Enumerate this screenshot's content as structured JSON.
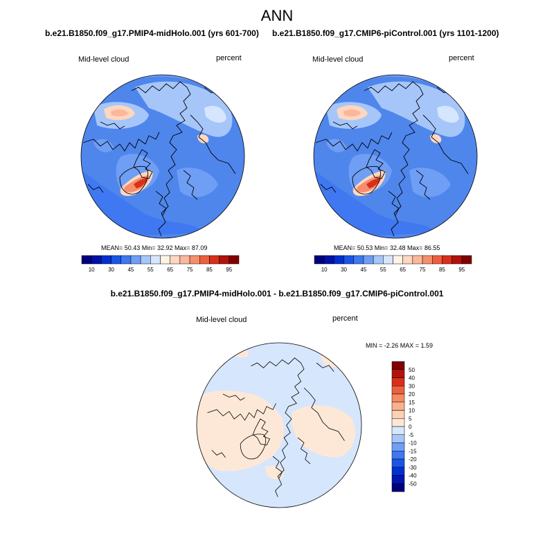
{
  "page_title": "ANN",
  "colors": {
    "abs_scale": [
      "#00007f",
      "#0010a8",
      "#0030d0",
      "#1a55e6",
      "#3f78f0",
      "#6f9ef5",
      "#a6c6fa",
      "#d6e6fd",
      "#fff3e6",
      "#fdd7bf",
      "#fbb79a",
      "#f68e6c",
      "#ee5f3e",
      "#d8301a",
      "#b3120a",
      "#800000"
    ],
    "diff_scale": [
      "#00007f",
      "#0016b0",
      "#0030d0",
      "#1a55e6",
      "#3f78f0",
      "#6f9ef5",
      "#a6c6fa",
      "#d6e6fd",
      "#fde8d7",
      "#fdd0b0",
      "#fbb090",
      "#f68a60",
      "#ee5f3e",
      "#d8301a",
      "#b3120a",
      "#800000"
    ],
    "map_base": "#4f86ec",
    "coast": "#000000"
  },
  "panels": {
    "left": {
      "case_title": "b.e21.B1850.f09_g17.PMIP4-midHolo.001 (yrs 601-700)",
      "variable": "Mid-level cloud",
      "units": "percent",
      "stats": "MEAN=  50.43  Min=  32.92  Max=  87.09"
    },
    "right": {
      "case_title": "b.e21.B1850.f09_g17.CMIP6-piControl.001 (yrs 1101-1200)",
      "variable": "Mid-level cloud",
      "units": "percent",
      "stats": "MEAN=  50.53  Min=  32.48  Max=  86.55"
    },
    "diff": {
      "case_title": "b.e21.B1850.f09_g17.PMIP4-midHolo.001 - b.e21.B1850.f09_g17.CMIP6-piControl.001",
      "variable": "Mid-level cloud",
      "units": "percent",
      "stats": "MIN =  -2.26 MAX =   1.59"
    }
  },
  "abs_colorbar_labels": [
    "10",
    "30",
    "45",
    "55",
    "65",
    "75",
    "85",
    "95"
  ],
  "diff_colorbar_labels": [
    "50",
    "40",
    "30",
    "20",
    "15",
    "10",
    "5",
    "0",
    "-5",
    "-10",
    "-15",
    "-20",
    "-30",
    "-40",
    "-50"
  ]
}
